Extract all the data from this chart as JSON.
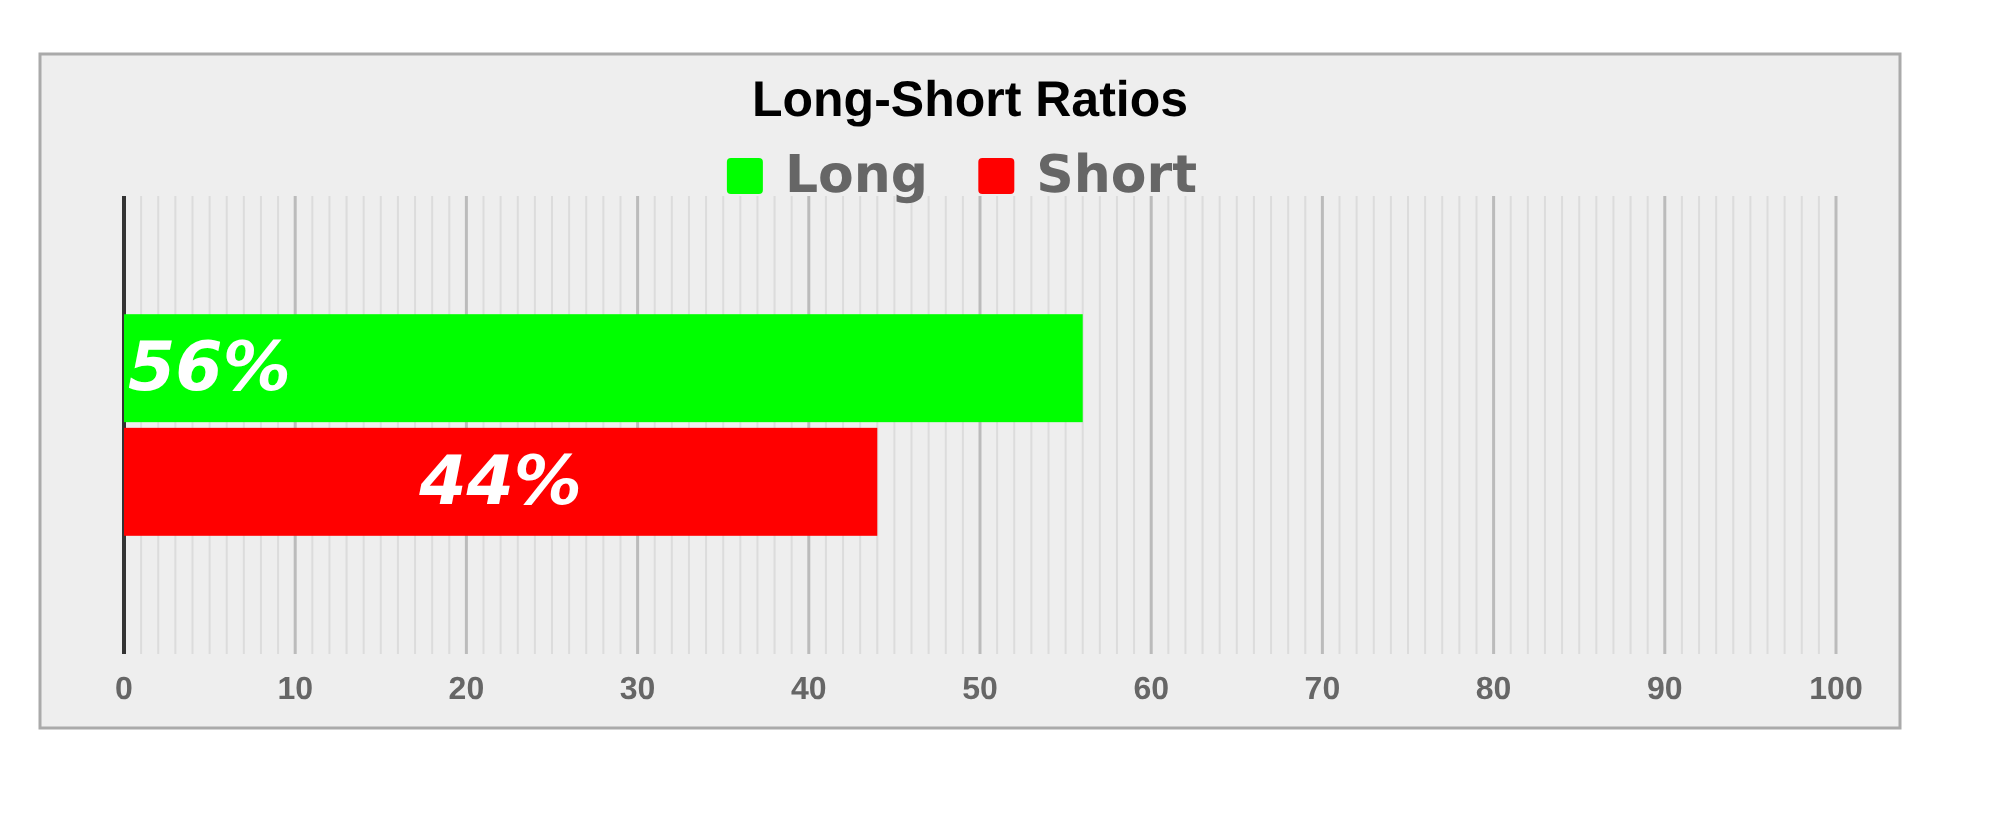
{
  "chart_data": {
    "type": "bar",
    "title": "Long-Short Ratios",
    "orientation": "horizontal",
    "categories": [
      null
    ],
    "series": [
      {
        "name": "Long",
        "color": "#00ff00",
        "values": [
          56
        ],
        "value_labels": [
          "56%"
        ]
      },
      {
        "name": "Short",
        "color": "#ff0000",
        "values": [
          44
        ],
        "value_labels": [
          "44%"
        ]
      }
    ],
    "xlim": [
      0,
      100
    ],
    "xticks": [
      0,
      {
        "value": 1,
        "label": null
      },
      {
        "value": 2,
        "label": null
      },
      {
        "value": 3,
        "label": null
      },
      {
        "value": 4,
        "label": null
      },
      {
        "value": 5,
        "label": null
      },
      {
        "value": 6,
        "label": null
      },
      {
        "value": 7,
        "label": null
      },
      {
        "value": 8,
        "label": null
      },
      {
        "value": 9,
        "label": null
      },
      10,
      {
        "value": 11,
        "label": null
      },
      {
        "value": 12,
        "label": null
      },
      {
        "value": 13,
        "label": null
      },
      {
        "value": 14,
        "label": null
      },
      {
        "value": 15,
        "label": null
      },
      {
        "value": 16,
        "label": null
      },
      {
        "value": 17,
        "label": null
      },
      {
        "value": 18,
        "label": null
      },
      {
        "value": 19,
        "label": null
      },
      20,
      {
        "value": 21,
        "label": null
      },
      {
        "value": 22,
        "label": null
      },
      {
        "value": 23,
        "label": null
      },
      {
        "value": 24,
        "label": null
      },
      {
        "value": 25,
        "label": null
      },
      {
        "value": 26,
        "label": null
      },
      {
        "value": 27,
        "label": null
      },
      {
        "value": 28,
        "label": null
      },
      {
        "value": 29,
        "label": null
      },
      30,
      {
        "value": 31,
        "label": null
      },
      {
        "value": 32,
        "label": null
      },
      {
        "value": 33,
        "label": null
      },
      {
        "value": 34,
        "label": null
      },
      {
        "value": 35,
        "label": null
      },
      {
        "value": 36,
        "label": null
      },
      {
        "value": 37,
        "label": null
      },
      {
        "value": 38,
        "label": null
      },
      {
        "value": 39,
        "label": null
      },
      40,
      {
        "value": 41,
        "label": null
      },
      {
        "value": 42,
        "label": null
      },
      {
        "value": 43,
        "label": null
      },
      {
        "value": 44,
        "label": null
      },
      {
        "value": 45,
        "label": null
      },
      {
        "value": 46,
        "label": null
      },
      {
        "value": 47,
        "label": null
      },
      {
        "value": 48,
        "label": null
      },
      {
        "value": 49,
        "label": null
      },
      50,
      {
        "value": 51,
        "label": null
      },
      {
        "value": 52,
        "label": null
      },
      {
        "value": 53,
        "label": null
      },
      {
        "value": 54,
        "label": null
      },
      {
        "value": 55,
        "label": null
      },
      {
        "value": 56,
        "label": null
      },
      {
        "value": 57,
        "label": null
      },
      {
        "value": 58,
        "label": null
      },
      {
        "value": 59,
        "label": null
      },
      60,
      {
        "value": 61,
        "label": null
      },
      {
        "value": 62,
        "label": null
      },
      {
        "value": 63,
        "label": null
      },
      {
        "value": 64,
        "label": null
      },
      {
        "value": 65,
        "label": null
      },
      {
        "value": 66,
        "label": null
      },
      {
        "value": 67,
        "label": null
      },
      {
        "value": 68,
        "label": null
      },
      {
        "value": 69,
        "label": null
      },
      70,
      {
        "value": 71,
        "label": null
      },
      {
        "value": 72,
        "label": null
      },
      {
        "value": 73,
        "label": null
      },
      {
        "value": 74,
        "label": null
      },
      {
        "value": 75,
        "label": null
      },
      {
        "value": 76,
        "label": null
      },
      {
        "value": 77,
        "label": null
      },
      {
        "value": 78,
        "label": null
      },
      {
        "value": 79,
        "label": null
      },
      80,
      {
        "value": 81,
        "label": null
      },
      {
        "value": 82,
        "label": null
      },
      {
        "value": 83,
        "label": null
      },
      {
        "value": 84,
        "label": null
      },
      {
        "value": 85,
        "label": null
      },
      {
        "value": 86,
        "label": null
      },
      {
        "value": 87,
        "label": null
      },
      {
        "value": 88,
        "label": null
      },
      {
        "value": 89,
        "label": null
      },
      90,
      {
        "value": 91,
        "label": null
      },
      {
        "value": 92,
        "label": null
      },
      {
        "value": 93,
        "label": null
      },
      {
        "value": 94,
        "label": null
      },
      {
        "value": 95,
        "label": null
      },
      {
        "value": 96,
        "label": null
      },
      {
        "value": 97,
        "label": null
      },
      {
        "value": 98,
        "label": null
      },
      {
        "value": 99,
        "label": null
      },
      100
    ],
    "grid": "x",
    "legend": "top",
    "tick_labels": "x"
  }
}
